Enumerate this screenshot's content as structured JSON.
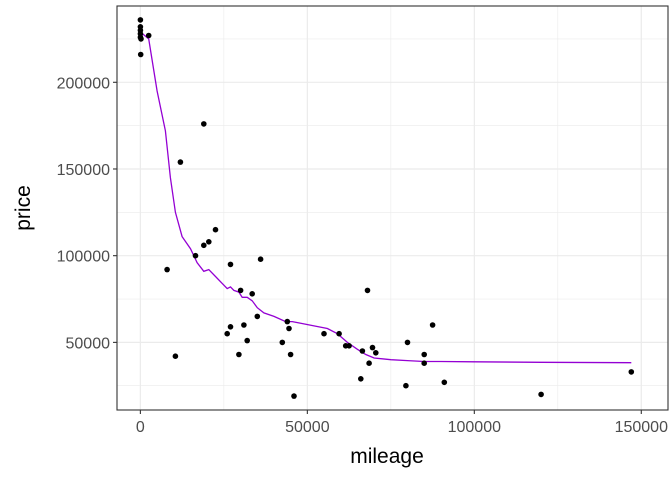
{
  "chart_data": {
    "type": "scatter",
    "title": "",
    "xlabel": "mileage",
    "ylabel": "price",
    "xlim": [
      -7000,
      158000
    ],
    "ylim": [
      11000,
      244000
    ],
    "x_ticks": [
      0,
      50000,
      100000,
      150000
    ],
    "x_tick_labels": [
      "0",
      "50000",
      "100000",
      "150000"
    ],
    "y_ticks": [
      50000,
      100000,
      150000,
      200000
    ],
    "y_tick_labels": [
      "50000",
      "100000",
      "150000",
      "200000"
    ],
    "grid": true,
    "colors": {
      "points": "#000000",
      "smooth": "#9400d3",
      "grid_major": "#ebebeb",
      "grid_minor": "#f5f5f5",
      "border": "#333333"
    },
    "points": [
      [
        0,
        236000
      ],
      [
        0,
        232000
      ],
      [
        0,
        230000
      ],
      [
        0,
        228000
      ],
      [
        0,
        226000
      ],
      [
        200,
        225000
      ],
      [
        100,
        216000
      ],
      [
        2500,
        227000
      ],
      [
        8000,
        92000
      ],
      [
        10500,
        42000
      ],
      [
        12000,
        154000
      ],
      [
        16500,
        100000
      ],
      [
        19000,
        176000
      ],
      [
        19000,
        106000
      ],
      [
        20500,
        108000
      ],
      [
        22500,
        115000
      ],
      [
        26000,
        55000
      ],
      [
        27000,
        95000
      ],
      [
        27000,
        59000
      ],
      [
        29500,
        43000
      ],
      [
        30000,
        80000
      ],
      [
        31000,
        60000
      ],
      [
        32000,
        51000
      ],
      [
        33500,
        78000
      ],
      [
        35000,
        65000
      ],
      [
        36000,
        98000
      ],
      [
        42500,
        50000
      ],
      [
        44000,
        62000
      ],
      [
        44500,
        58000
      ],
      [
        45000,
        43000
      ],
      [
        46000,
        19000
      ],
      [
        55000,
        55000
      ],
      [
        59500,
        55000
      ],
      [
        61500,
        48000
      ],
      [
        62500,
        48000
      ],
      [
        66000,
        29000
      ],
      [
        66500,
        45000
      ],
      [
        68000,
        80000
      ],
      [
        68500,
        38000
      ],
      [
        69500,
        47000
      ],
      [
        70500,
        44000
      ],
      [
        79500,
        25000
      ],
      [
        80000,
        50000
      ],
      [
        85000,
        43000
      ],
      [
        85000,
        38000
      ],
      [
        87500,
        60000
      ],
      [
        91000,
        27000
      ],
      [
        120000,
        20000
      ],
      [
        147000,
        33000
      ]
    ],
    "smooth_line": [
      [
        0,
        229000
      ],
      [
        2500,
        225000
      ],
      [
        5000,
        195000
      ],
      [
        7500,
        172000
      ],
      [
        9000,
        145000
      ],
      [
        10500,
        125000
      ],
      [
        12500,
        111000
      ],
      [
        15000,
        104000
      ],
      [
        17000,
        96000
      ],
      [
        19000,
        91000
      ],
      [
        20500,
        92000
      ],
      [
        22500,
        88000
      ],
      [
        24500,
        84000
      ],
      [
        26000,
        81000
      ],
      [
        27000,
        82000
      ],
      [
        28000,
        80000
      ],
      [
        29500,
        79000
      ],
      [
        30500,
        76000
      ],
      [
        32000,
        76000
      ],
      [
        33500,
        74000
      ],
      [
        35000,
        70000
      ],
      [
        37000,
        67000
      ],
      [
        40000,
        65000
      ],
      [
        43500,
        62000
      ],
      [
        45500,
        62000
      ],
      [
        48000,
        61000
      ],
      [
        52000,
        59500
      ],
      [
        56000,
        58000
      ],
      [
        59000,
        55000
      ],
      [
        62000,
        50000
      ],
      [
        65000,
        46000
      ],
      [
        67500,
        43000
      ],
      [
        70000,
        41000
      ],
      [
        75000,
        40000
      ],
      [
        80000,
        39500
      ],
      [
        85000,
        39000
      ],
      [
        90000,
        39000
      ],
      [
        100000,
        38800
      ],
      [
        120000,
        38500
      ],
      [
        147000,
        38300
      ]
    ]
  }
}
